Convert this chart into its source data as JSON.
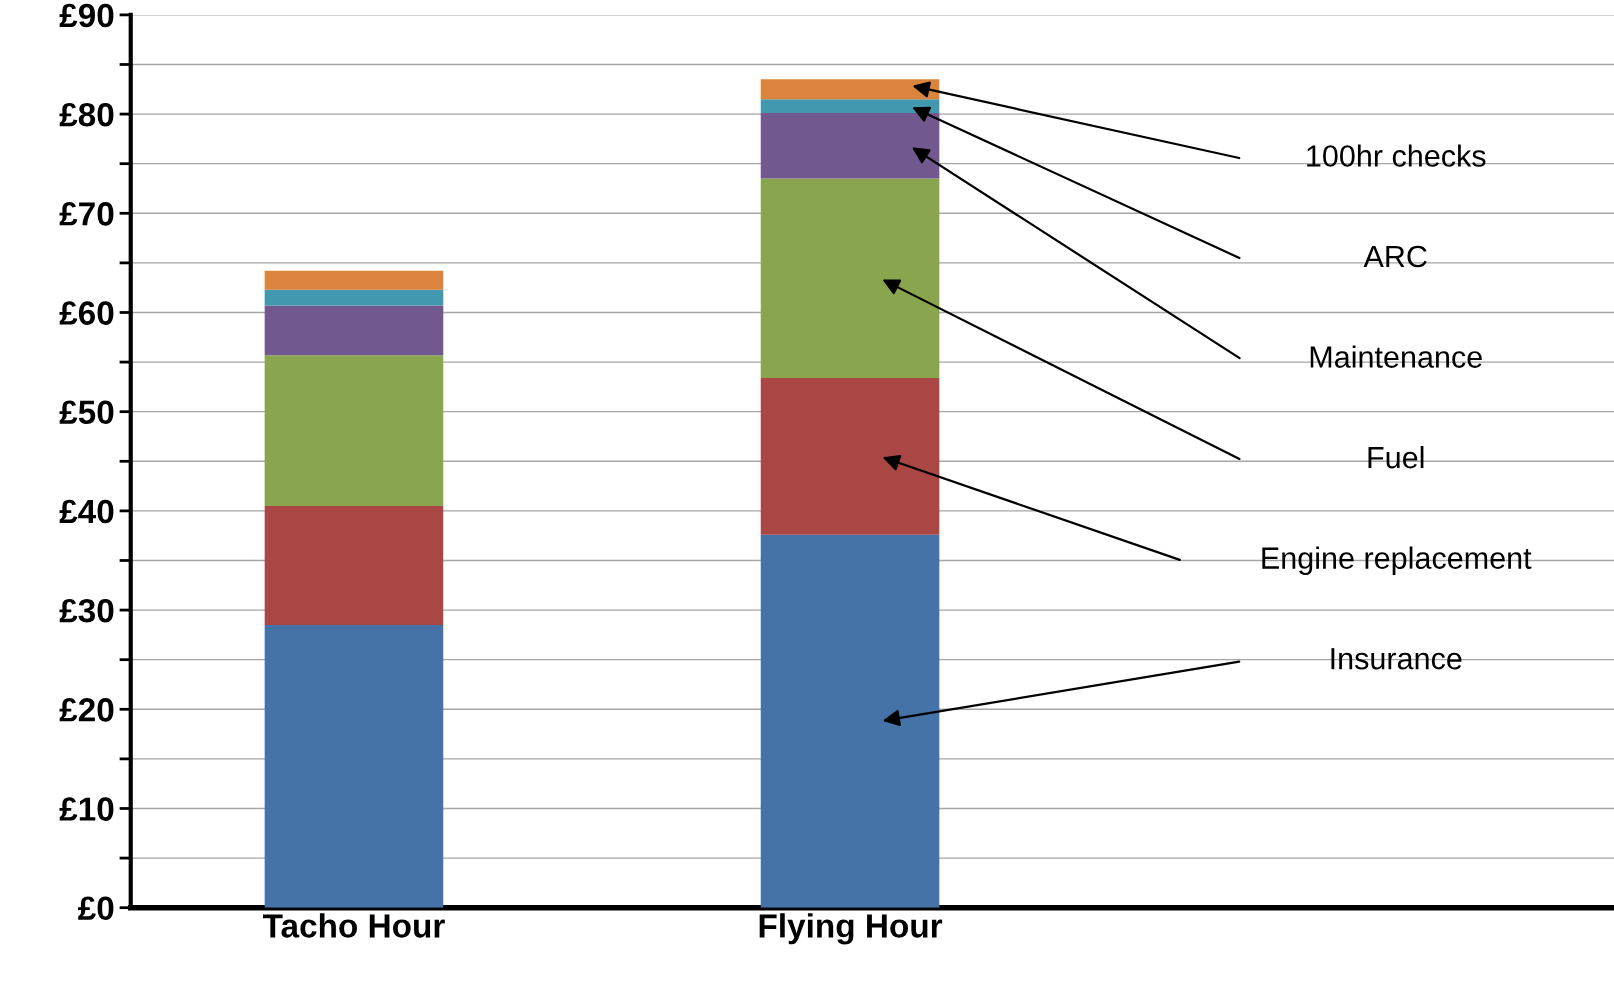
{
  "chart_data": {
    "type": "bar",
    "stacked": true,
    "categories": [
      "Tacho Hour",
      "Flying Hour"
    ],
    "series": [
      {
        "name": "Insurance",
        "color": "#4572a7",
        "values": [
          28.5,
          37.6
        ]
      },
      {
        "name": "Engine replacement",
        "color": "#aa4643",
        "values": [
          12.0,
          15.8
        ]
      },
      {
        "name": "Fuel",
        "color": "#89a54e",
        "values": [
          15.2,
          20.1
        ]
      },
      {
        "name": "Maintenance",
        "color": "#71588f",
        "values": [
          5.0,
          6.6
        ]
      },
      {
        "name": "ARC",
        "color": "#4198af",
        "values": [
          1.6,
          1.4
        ]
      },
      {
        "name": "100hr checks",
        "color": "#db843d",
        "values": [
          1.9,
          2.0
        ]
      }
    ],
    "ylim": [
      0,
      90
    ],
    "yticks": [
      {
        "value": 0,
        "label": "£0"
      },
      {
        "value": 5,
        "label": null
      },
      {
        "value": 10,
        "label": "£10"
      },
      {
        "value": 15,
        "label": null
      },
      {
        "value": 20,
        "label": "£20"
      },
      {
        "value": 25,
        "label": null
      },
      {
        "value": 30,
        "label": "£30"
      },
      {
        "value": 35,
        "label": null
      },
      {
        "value": 40,
        "label": "£40"
      },
      {
        "value": 45,
        "label": null
      },
      {
        "value": 50,
        "label": "£50"
      },
      {
        "value": 55,
        "label": null
      },
      {
        "value": 60,
        "label": "£60"
      },
      {
        "value": 65,
        "label": null
      },
      {
        "value": 70,
        "label": "£70"
      },
      {
        "value": 75,
        "label": null
      },
      {
        "value": 80,
        "label": "£80"
      },
      {
        "value": 85,
        "label": null
      },
      {
        "value": 90,
        "label": "£90"
      }
    ],
    "grid": "y"
  }
}
